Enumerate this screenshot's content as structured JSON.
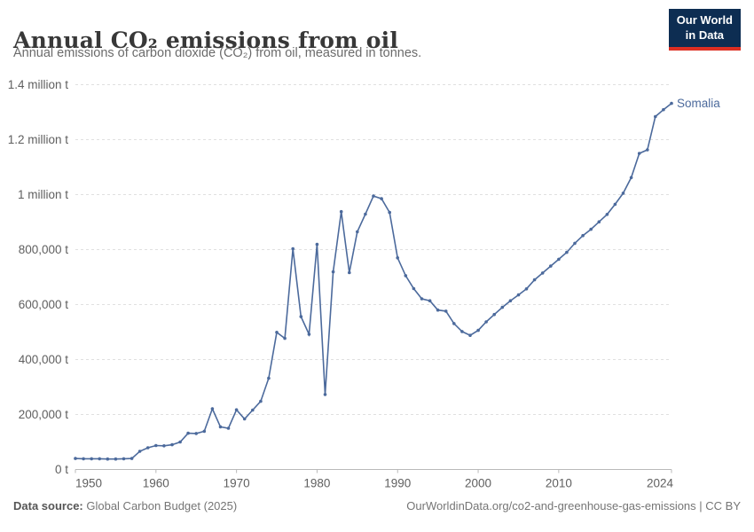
{
  "header": {
    "title": "Annual CO₂ emissions from oil",
    "subtitle": "Annual emissions of carbon dioxide (CO₂) from oil, measured in tonnes.",
    "logo": {
      "line1": "Our World",
      "line2": "in Data",
      "bg_color": "#0d2d52",
      "accent_color": "#dc2e22"
    }
  },
  "footer": {
    "source_label": "Data source:",
    "source_value": " Global Carbon Budget (2025)",
    "link": "OurWorldinData.org/co2-and-greenhouse-gas-emissions | CC BY"
  },
  "chart_data": {
    "type": "line",
    "title": "Annual CO₂ emissions from oil",
    "xlabel": "",
    "ylabel": "tonnes",
    "grid": "horizontal-dashed",
    "legend_position": "end-of-line-label",
    "line_color": "#4c6a9c",
    "grid_color": "#e0e0e0",
    "axis_color": "#b9b9b9",
    "xlim": [
      1950,
      2024
    ],
    "ylim": [
      0,
      1400000
    ],
    "xticks": {
      "values": [
        1950,
        1960,
        1970,
        1980,
        1990,
        2000,
        2010,
        2024
      ],
      "labels": [
        "1950",
        "1960",
        "1970",
        "1980",
        "1990",
        "2000",
        "2010",
        "2024"
      ]
    },
    "yticks": {
      "values": [
        0,
        200000,
        400000,
        600000,
        800000,
        1000000,
        1200000,
        1400000
      ],
      "labels": [
        "0 t",
        "200,000 t",
        "400,000 t",
        "600,000 t",
        "800,000 t",
        "1 million t",
        "1.2 million t",
        "1.4 million t"
      ]
    },
    "x": [
      1950,
      1951,
      1952,
      1953,
      1954,
      1955,
      1956,
      1957,
      1958,
      1959,
      1960,
      1961,
      1962,
      1963,
      1964,
      1965,
      1966,
      1967,
      1968,
      1969,
      1970,
      1971,
      1972,
      1973,
      1974,
      1975,
      1976,
      1977,
      1978,
      1979,
      1980,
      1981,
      1982,
      1983,
      1984,
      1985,
      1986,
      1987,
      1988,
      1989,
      1990,
      1991,
      1992,
      1993,
      1994,
      1995,
      1996,
      1997,
      1998,
      1999,
      2000,
      2001,
      2002,
      2003,
      2004,
      2005,
      2006,
      2007,
      2008,
      2009,
      2010,
      2011,
      2012,
      2013,
      2014,
      2015,
      2016,
      2017,
      2018,
      2019,
      2020,
      2021,
      2022,
      2023,
      2024
    ],
    "series": [
      {
        "name": "Somalia",
        "values": [
          40000,
          39000,
          39000,
          39000,
          38000,
          38000,
          39000,
          40000,
          66000,
          79000,
          87000,
          86000,
          90000,
          100000,
          132000,
          131000,
          139000,
          221000,
          155000,
          150000,
          217000,
          184000,
          216000,
          248000,
          332000,
          499000,
          477000,
          803000,
          556000,
          492000,
          819000,
          273000,
          719000,
          938000,
          716000,
          865000,
          929000,
          995000,
          985000,
          935000,
          770000,
          705000,
          658000,
          621000,
          614000,
          580000,
          576000,
          531000,
          502000,
          488000,
          506000,
          537000,
          564000,
          590000,
          614000,
          635000,
          657000,
          690000,
          715000,
          740000,
          765000,
          790000,
          823000,
          851000,
          874000,
          901000,
          928000,
          965000,
          1005000,
          1062000,
          1150000,
          1163000,
          1284000,
          1309000,
          1332000
        ]
      }
    ]
  }
}
